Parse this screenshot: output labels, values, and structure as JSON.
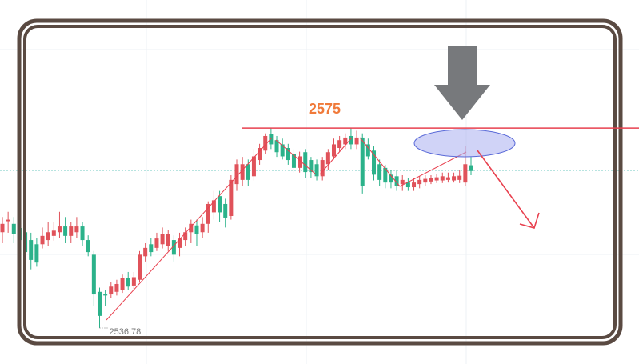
{
  "chart_data": {
    "type": "candlestick",
    "up_color": "#e0525a",
    "down_color": "#2bb28a",
    "ylim": [
      2529.9,
      2599.5
    ],
    "level": 2575,
    "level_color": "#e8414f",
    "low_label": 2536.78,
    "open": [
      2555.1,
      2557.2,
      2556.7,
      2555.9,
      2555.1,
      2553.6,
      2552.8,
      2552.8,
      2553.6,
      2554.4,
      2555.1,
      2556.2,
      2554.4,
      2555.1,
      2556.2,
      2553.6,
      2550.8,
      2543.7,
      2543.2,
      2543.2,
      2543.7,
      2544.1,
      2546.3,
      2544.9,
      2546.0,
      2550.5,
      2552.8,
      2552.1,
      2552.8,
      2552.4,
      2553.6,
      2552.1,
      2553.6,
      2555.1,
      2556.4,
      2555.1,
      2556.7,
      2558.9,
      2562.0,
      2560.5,
      2558.2,
      2564.3,
      2565.1,
      2568.1,
      2565.8,
      2568.9,
      2570.7,
      2573.8,
      2572.7,
      2571.9,
      2571.2,
      2570.1,
      2567.4,
      2570.4,
      2568.9,
      2568.1,
      2565.8,
      2568.1,
      2569.6,
      2571.2,
      2571.9,
      2573.5,
      2571.9,
      2573.2,
      2571.9,
      2570.7,
      2568.1,
      2567.4,
      2566.1,
      2565.8,
      2564.3,
      2564.6,
      2563.7,
      2564.3,
      2564.6,
      2564.8,
      2565.0,
      2565.0,
      2565.1,
      2565.0,
      2565.1,
      2564.6,
      2567.9
    ],
    "close": [
      2556.7,
      2557.5,
      2554.8,
      2553.6,
      2551.3,
      2549.8,
      2549.3,
      2554.4,
      2555.1,
      2555.4,
      2556.2,
      2554.4,
      2556.2,
      2556.2,
      2553.6,
      2551.3,
      2543.2,
      2539.1,
      2543.0,
      2544.7,
      2545.2,
      2546.3,
      2544.7,
      2546.5,
      2550.8,
      2552.1,
      2551.3,
      2553.9,
      2554.8,
      2554.8,
      2550.8,
      2553.9,
      2555.1,
      2556.7,
      2554.8,
      2556.7,
      2560.5,
      2561.2,
      2558.9,
      2557.9,
      2565.1,
      2568.1,
      2568.1,
      2565.1,
      2569.6,
      2571.2,
      2573.5,
      2571.9,
      2570.4,
      2569.6,
      2568.9,
      2567.4,
      2569.6,
      2566.6,
      2566.6,
      2565.8,
      2568.9,
      2570.4,
      2571.9,
      2572.7,
      2573.2,
      2571.9,
      2573.2,
      2564.0,
      2569.6,
      2566.1,
      2565.1,
      2564.6,
      2564.6,
      2564.0,
      2565.1,
      2563.7,
      2564.6,
      2565.1,
      2565.3,
      2565.4,
      2565.6,
      2565.8,
      2565.6,
      2565.8,
      2565.9,
      2568.1,
      2566.8
    ],
    "high": [
      2558.0,
      2559.0,
      2558.0,
      2557.0,
      2556.0,
      2555.0,
      2554.0,
      2556.0,
      2557.0,
      2557.0,
      2559.0,
      2558.0,
      2557.0,
      2558.0,
      2557.0,
      2554.5,
      2551.5,
      2544.5,
      2544.0,
      2545.5,
      2546.0,
      2547.0,
      2547.5,
      2547.5,
      2551.5,
      2553.0,
      2554.0,
      2555.0,
      2556.0,
      2555.5,
      2554.5,
      2555.0,
      2556.0,
      2557.5,
      2557.5,
      2558.0,
      2561.0,
      2563.0,
      2563.0,
      2561.5,
      2566.0,
      2569.0,
      2569.5,
      2569.0,
      2571.0,
      2572.0,
      2574.0,
      2575.0,
      2573.5,
      2573.0,
      2572.0,
      2571.0,
      2570.5,
      2571.0,
      2569.5,
      2569.0,
      2569.5,
      2571.0,
      2573.0,
      2573.5,
      2574.0,
      2575.0,
      2574.5,
      2574.0,
      2573.0,
      2571.5,
      2569.0,
      2568.0,
      2567.0,
      2567.0,
      2566.0,
      2565.5,
      2565.5,
      2565.8,
      2566.0,
      2566.0,
      2566.2,
      2566.5,
      2566.5,
      2566.5,
      2567.0,
      2571.5,
      2569.5
    ],
    "low": [
      2553.0,
      2555.0,
      2553.0,
      2552.0,
      2550.0,
      2548.0,
      2548.5,
      2552.0,
      2552.5,
      2553.5,
      2554.0,
      2553.0,
      2553.0,
      2554.0,
      2552.5,
      2550.5,
      2541.0,
      2536.78,
      2541.0,
      2542.5,
      2543.0,
      2543.5,
      2544.0,
      2544.0,
      2545.5,
      2549.5,
      2550.5,
      2551.5,
      2552.0,
      2551.5,
      2549.5,
      2550.5,
      2552.5,
      2553.0,
      2552.5,
      2554.0,
      2555.0,
      2557.5,
      2557.0,
      2556.0,
      2557.5,
      2563.0,
      2564.0,
      2564.0,
      2565.0,
      2568.0,
      2570.0,
      2571.0,
      2569.5,
      2569.0,
      2568.0,
      2566.5,
      2566.5,
      2565.5,
      2565.5,
      2565.0,
      2565.0,
      2567.0,
      2569.0,
      2570.5,
      2571.0,
      2571.0,
      2571.0,
      2562.5,
      2569.0,
      2565.0,
      2564.0,
      2563.5,
      2563.5,
      2563.0,
      2563.0,
      2563.0,
      2563.0,
      2563.5,
      2564.0,
      2564.3,
      2564.5,
      2564.5,
      2564.6,
      2564.6,
      2564.5,
      2564.0,
      2566.0
    ]
  }
}
